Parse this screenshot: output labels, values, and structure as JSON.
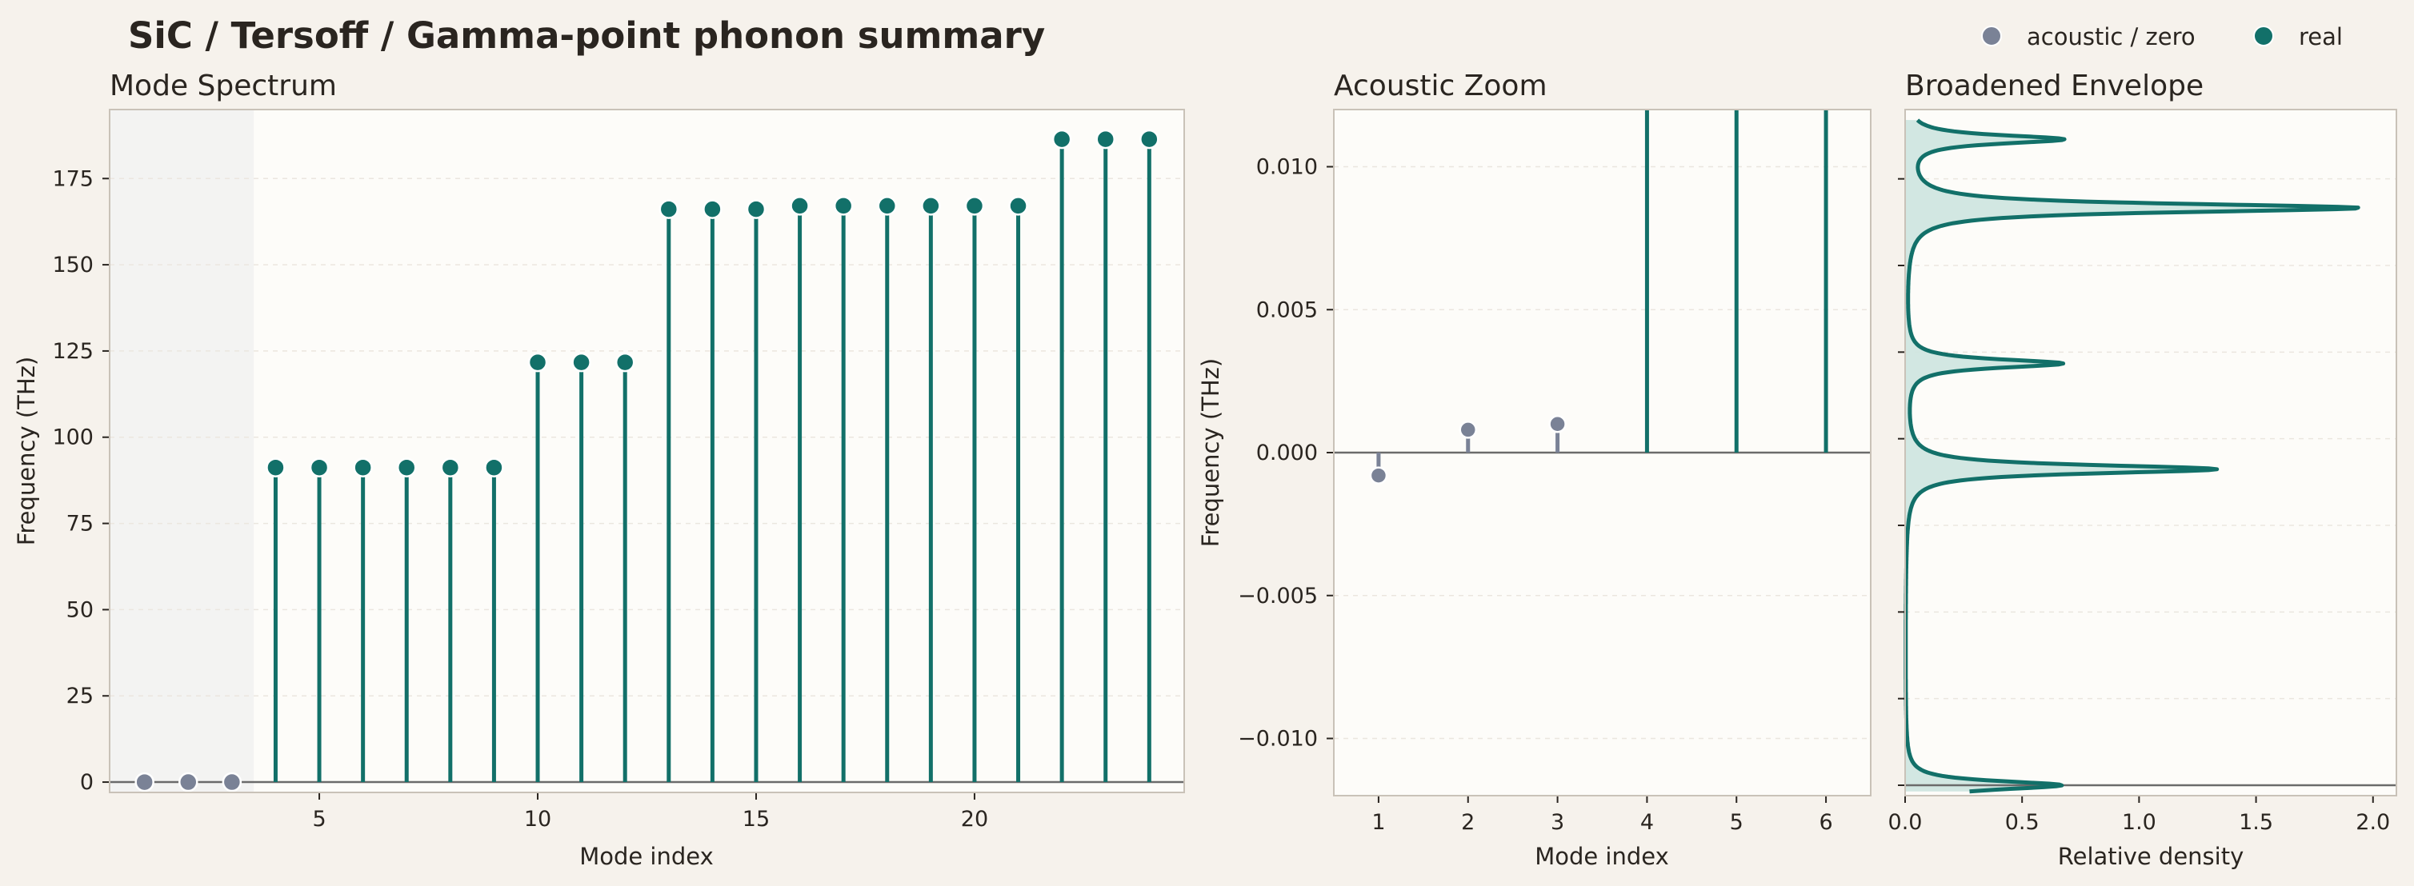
{
  "figure": {
    "title": "SiC / Tersoff / Gamma-point phonon summary",
    "legend": [
      {
        "label": "acoustic / zero",
        "color": "#7a8296"
      },
      {
        "label": "real",
        "color": "#127069"
      }
    ]
  },
  "colors": {
    "page_bg": "#f6f2ec",
    "plot_bg": "#fdfcf9",
    "real": "#127069",
    "acoustic": "#7a8296",
    "zero_line": "#6b6b6b",
    "acoustic_band": "#f3f3f2",
    "fill": "#cde4df",
    "text": "#2a2520"
  },
  "chart_data": [
    {
      "type": "stem",
      "title": "Mode Spectrum",
      "xlabel": "Mode index",
      "ylabel": "Frequency (THz)",
      "xlim": [
        0.2,
        24.8
      ],
      "ylim": [
        -3,
        195
      ],
      "xticks": [
        5,
        10,
        15,
        20
      ],
      "yticks": [
        0,
        25,
        50,
        75,
        100,
        125,
        150,
        175
      ],
      "grid": true,
      "acoustic_band": [
        0.2,
        3.5
      ],
      "series": [
        {
          "name": "acoustic / zero",
          "x": [
            1,
            2,
            3
          ],
          "values": [
            -0.0008,
            0.0008,
            0.001
          ]
        },
        {
          "name": "real",
          "x": [
            4,
            5,
            6,
            7,
            8,
            9,
            10,
            11,
            12,
            13,
            14,
            15,
            16,
            17,
            18,
            19,
            20,
            21,
            22,
            23,
            24
          ],
          "values": [
            91.2,
            91.2,
            91.2,
            91.2,
            91.2,
            91.2,
            121.7,
            121.7,
            121.7,
            166.1,
            166.1,
            166.1,
            167.1,
            167.1,
            167.1,
            167.1,
            167.1,
            167.1,
            186.4,
            186.4,
            186.4
          ]
        }
      ]
    },
    {
      "type": "stem",
      "title": "Acoustic Zoom",
      "xlabel": "Mode index",
      "ylabel": "Frequency (THz)",
      "xlim": [
        0.5,
        6.5
      ],
      "ylim": [
        -0.012,
        0.012
      ],
      "xticks": [
        1,
        2,
        3,
        4,
        5,
        6
      ],
      "yticks": [
        -0.01,
        -0.005,
        0,
        0.005,
        0.01
      ],
      "ytick_labels": [
        "−0.010",
        "−0.005",
        "0.000",
        "0.005",
        "0.010"
      ],
      "grid": true,
      "series": [
        {
          "name": "acoustic / zero",
          "x": [
            1,
            2,
            3
          ],
          "values": [
            -0.0008,
            0.0008,
            0.001
          ]
        },
        {
          "name": "real",
          "x": [
            4,
            5,
            6
          ],
          "values": [
            91.2,
            91.2,
            91.2
          ]
        }
      ]
    },
    {
      "type": "area",
      "title": "Broadened Envelope",
      "xlabel": "Relative density",
      "ylabel": "",
      "xlim": [
        0,
        2.1
      ],
      "ylim": [
        -3,
        195
      ],
      "xticks": [
        0,
        0.5,
        1,
        1.5,
        2
      ],
      "xtick_labels": [
        "0.0",
        "0.5",
        "1.0",
        "1.5",
        "2.0"
      ],
      "yticks": [
        0,
        25,
        50,
        75,
        100,
        125,
        150,
        175
      ],
      "grid": true,
      "peaks": [
        {
          "center": 0,
          "height": 0.67
        },
        {
          "center": 91.2,
          "height": 1.33
        },
        {
          "center": 121.7,
          "height": 0.67
        },
        {
          "center": 166.6,
          "height": 1.94
        },
        {
          "center": 186.4,
          "height": 0.67
        }
      ],
      "sigma": 1.5,
      "y_range": [
        -1.8,
        192
      ]
    }
  ]
}
